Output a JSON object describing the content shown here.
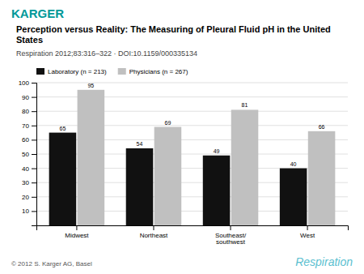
{
  "chart_data": {
    "type": "bar",
    "title": "Perception versus Reality: The Measuring of Pleural Fluid pH in the United States",
    "subtitle": "Respiration 2012;83:316–322 · DOI:10.1159/000335134",
    "annotations": [
      "KARGER",
      "© 2012 S. Karger AG, Basel",
      "Respiration"
    ],
    "categories": [
      "Midwest",
      "Northeast",
      "Southeast/\nsouthwest",
      "West"
    ],
    "series": [
      {
        "name": "Laboratory (n = 213)",
        "color": "#111111",
        "values": [
          65,
          54,
          49,
          40
        ]
      },
      {
        "name": "Physicians (n = 267)",
        "color": "#c0c0c0",
        "values": [
          95,
          69,
          81,
          66
        ]
      }
    ],
    "ylim": [
      0,
      100
    ],
    "yticks": [
      10,
      20,
      30,
      40,
      50,
      60,
      70,
      80,
      90,
      100
    ],
    "grid": true,
    "legend": "upper left",
    "data_labels": true
  }
}
